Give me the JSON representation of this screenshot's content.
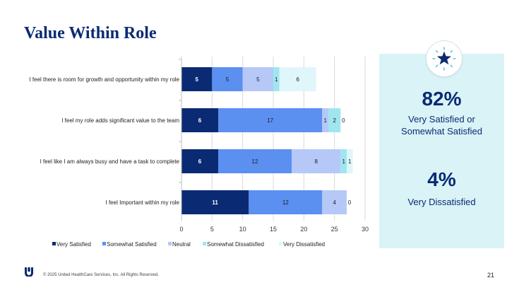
{
  "slide": {
    "title": "Value Within Role",
    "footer": "© 2025 United HealthCare Services, Inc. All Rights Reserved.",
    "page_number": "21"
  },
  "panel": {
    "stat1_value": "82%",
    "stat1_label": "Very Satisfied or Somewhat Satisfied",
    "stat2_value": "4%",
    "stat2_label": "Very Dissatisfied",
    "icon": "star-badge-icon",
    "background": "#d9f3f7"
  },
  "chart_data": {
    "type": "bar",
    "orientation": "horizontal",
    "stacked": true,
    "title": "",
    "xlabel": "",
    "ylabel": "",
    "xlim": [
      0,
      30
    ],
    "xticks": [
      0,
      5,
      10,
      15,
      20,
      25,
      30
    ],
    "grid": true,
    "legend_position": "bottom",
    "categories": [
      "I feel there is room for growth and opportunity within my role",
      "I feel my role adds significant value to the team",
      "I feel like I am always busy and have a task to complete",
      "I feel Important within my role"
    ],
    "series": [
      {
        "name": "Very Satisfied",
        "color": "#0a2a73",
        "values": [
          5,
          6,
          6,
          11
        ]
      },
      {
        "name": "Somewhat Satisfied",
        "color": "#5b8ff0",
        "values": [
          5,
          17,
          12,
          12
        ]
      },
      {
        "name": "Neutral",
        "color": "#b5c8f8",
        "values": [
          5,
          1,
          8,
          4
        ]
      },
      {
        "name": "Somewhat Dissatisfied",
        "color": "#9fe6ef",
        "values": [
          1,
          2,
          1,
          0
        ]
      },
      {
        "name": "Very Dissatisfied",
        "color": "#dff6fa",
        "values": [
          6,
          0,
          1,
          0
        ]
      }
    ]
  }
}
